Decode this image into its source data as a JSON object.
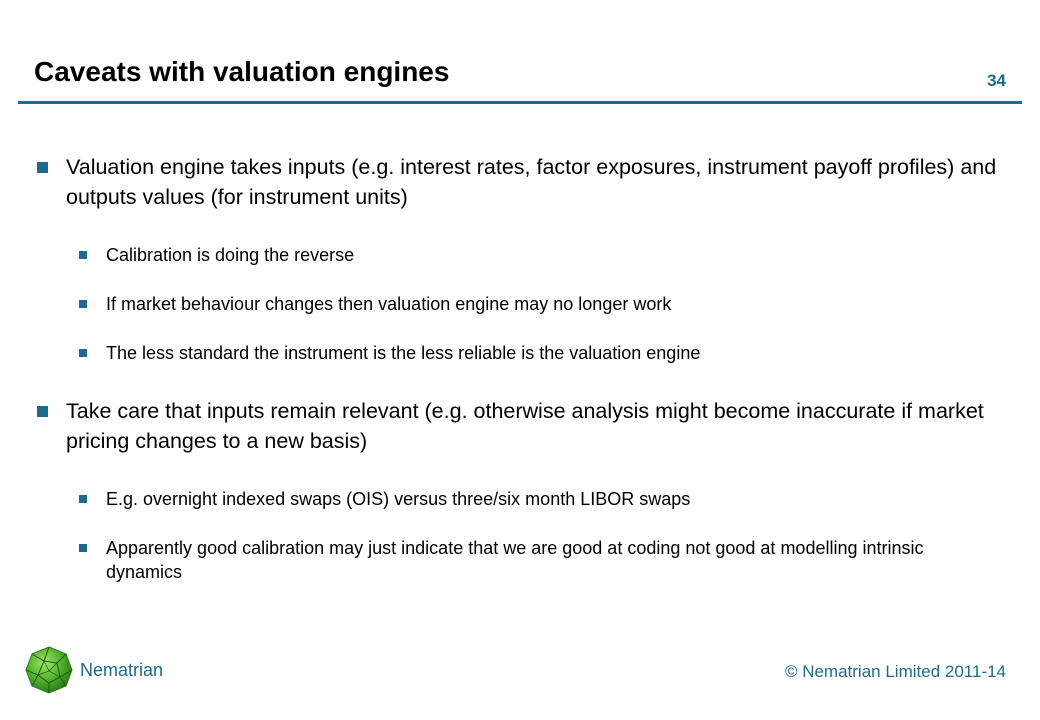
{
  "slide": {
    "title": "Caveats with valuation engines",
    "page_number": "34"
  },
  "bullets": [
    {
      "text": "Valuation engine takes inputs (e.g. interest rates, factor exposures, instrument payoff profiles) and outputs values (for instrument units)",
      "subitems": [
        "Calibration is doing the reverse",
        "If market behaviour changes then valuation engine may no longer work",
        "The less standard the instrument is the less reliable is the valuation engine"
      ]
    },
    {
      "text": "Take care that inputs remain relevant (e.g. otherwise analysis might become inaccurate if market pricing changes to a new basis)",
      "subitems": [
        "E.g. overnight indexed swaps (OIS) versus three/six month LIBOR swaps",
        "Apparently good calibration may just indicate that we are good at coding not good at modelling intrinsic dynamics"
      ]
    }
  ],
  "footer": {
    "brand": "Nematrian",
    "copyright": "© Nematrian Limited 2011-14",
    "logo_icon": "green-polyhedron-icon"
  },
  "colors": {
    "accent": "#1f6a8c",
    "logo_green": "#4caf2a"
  }
}
